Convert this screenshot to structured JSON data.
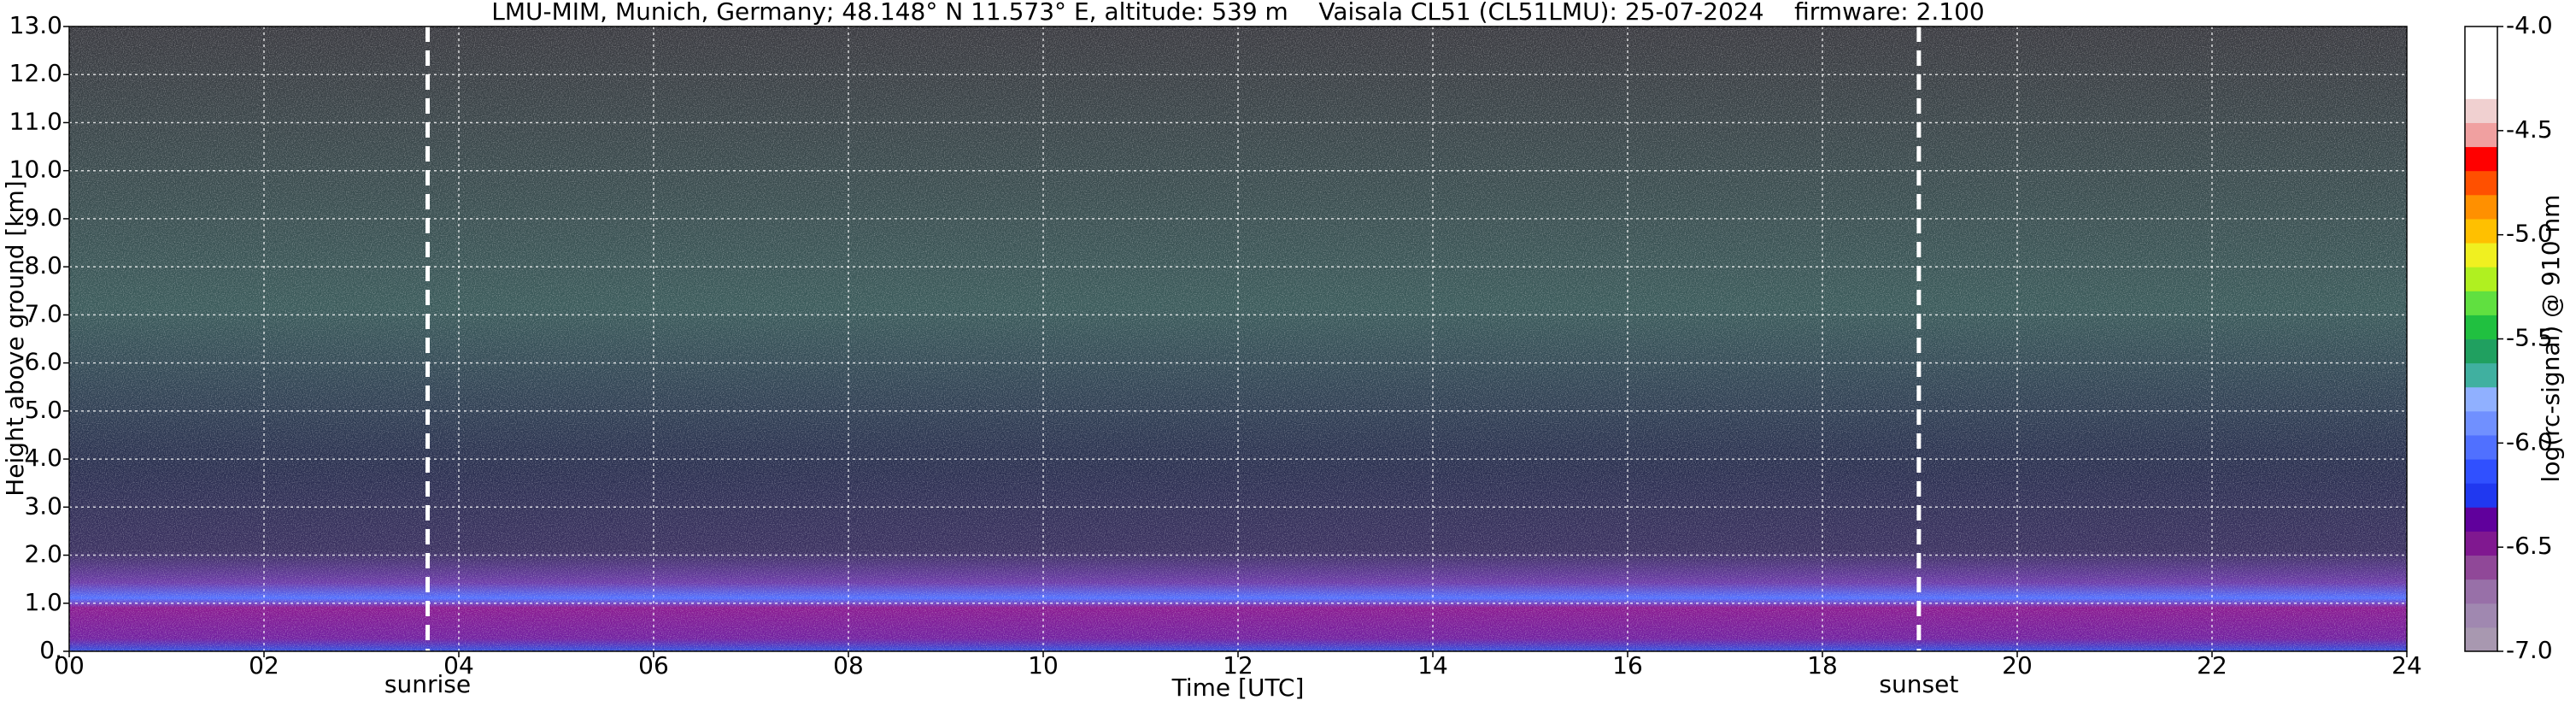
{
  "chart_data": {
    "type": "heatmap",
    "title": "LMU-MIM, Munich, Germany; 48.148° N 11.573° E, altitude: 539 m    Vaisala CL51 (CL51LMU): 25-07-2024    firmware: 2.100",
    "x_label": "Time [UTC]",
    "y_label": "Height above ground [km]",
    "xlim": [
      0,
      24
    ],
    "xticks": [
      {
        "value": 0,
        "label": "00"
      },
      {
        "value": 2,
        "label": "02"
      },
      {
        "value": 4,
        "label": "04"
      },
      {
        "value": 6,
        "label": "06"
      },
      {
        "value": 8,
        "label": "08"
      },
      {
        "value": 10,
        "label": "10"
      },
      {
        "value": 12,
        "label": "12"
      },
      {
        "value": 14,
        "label": "14"
      },
      {
        "value": 16,
        "label": "16"
      },
      {
        "value": 18,
        "label": "18"
      },
      {
        "value": 20,
        "label": "20"
      },
      {
        "value": 22,
        "label": "22"
      },
      {
        "value": 24,
        "label": "24"
      }
    ],
    "ylim": [
      0,
      13
    ],
    "yticks": [
      {
        "value": 0,
        "label": "0."
      },
      {
        "value": 1,
        "label": "1.0"
      },
      {
        "value": 2,
        "label": "2.0"
      },
      {
        "value": 3,
        "label": "3.0"
      },
      {
        "value": 4,
        "label": "4.0"
      },
      {
        "value": 5,
        "label": "5.0"
      },
      {
        "value": 6,
        "label": "6.0"
      },
      {
        "value": 7,
        "label": "7.0"
      },
      {
        "value": 8,
        "label": "8.0"
      },
      {
        "value": 9,
        "label": "9.0"
      },
      {
        "value": 10,
        "label": "10.0"
      },
      {
        "value": 11,
        "label": "11.0"
      },
      {
        "value": 12,
        "label": "12.0"
      },
      {
        "value": 13,
        "label": "13.0"
      }
    ],
    "grid": true,
    "annotations": [
      {
        "text": "sunrise",
        "x": 3.68
      },
      {
        "text": "sunset",
        "x": 18.99
      }
    ],
    "colorbar": {
      "label": "log(rc-signal) @ 910 nm",
      "lim": [
        -7,
        -4
      ],
      "ticks": [
        {
          "value": -4,
          "label": "-4.0"
        },
        {
          "value": -4.5,
          "label": "-4.5"
        },
        {
          "value": -5,
          "label": "-5.0"
        },
        {
          "value": -5.5,
          "label": "-5.5"
        },
        {
          "value": -6,
          "label": "-6.0"
        },
        {
          "value": -6.5,
          "label": "-6.5"
        },
        {
          "value": -7,
          "label": "-7.0"
        }
      ],
      "colors": [
        "#a898b0",
        "#a088b0",
        "#9870a8",
        "#904898",
        "#801890",
        "#60009c",
        "#2038f0",
        "#3050ff",
        "#5070ff",
        "#7090ff",
        "#90b0ff",
        "#40b0a0",
        "#20a060",
        "#20c040",
        "#60e040",
        "#b0f020",
        "#f0f020",
        "#ffc000",
        "#ff9000",
        "#ff5000",
        "#ff0000",
        "#f0a0a0",
        "#f0d0d0",
        "#ffffff",
        "#ffffff",
        "#ffffff"
      ]
    }
  }
}
